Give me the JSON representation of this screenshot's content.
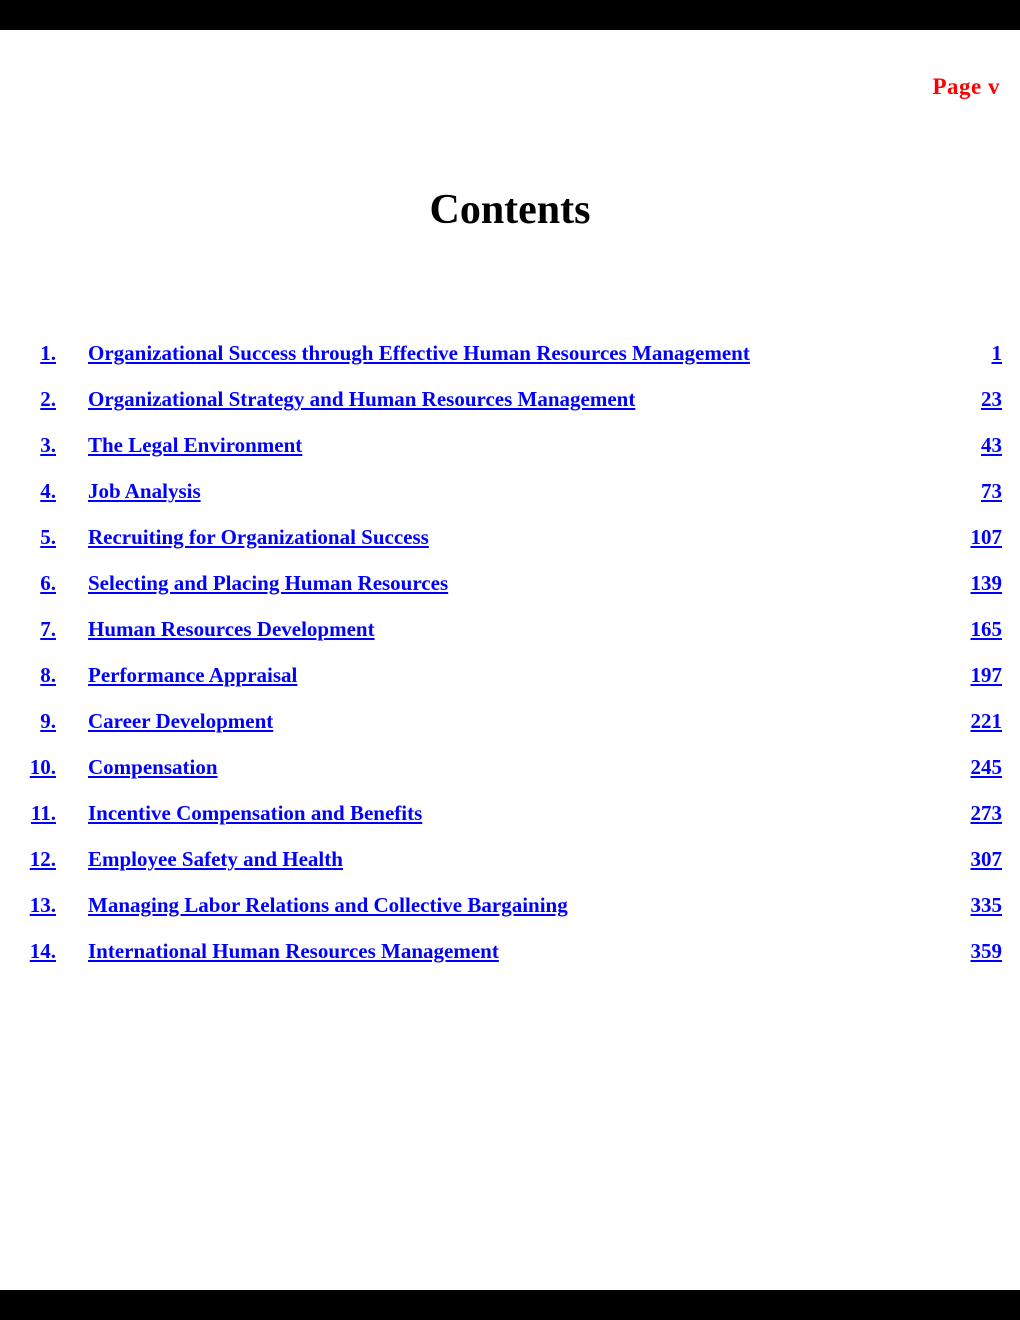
{
  "page": {
    "page_label": "Page v",
    "title": "Contents"
  },
  "colors": {
    "link": "#0000ff",
    "page_label": "#ff0000",
    "border_bar": "#000000",
    "background": "#ffffff"
  },
  "toc": {
    "items": [
      {
        "num": "1.",
        "title": "Organizational Success through Effective Human Resources Management",
        "page": "1"
      },
      {
        "num": "2.",
        "title": "Organizational Strategy and Human Resources Management",
        "page": "23"
      },
      {
        "num": "3.",
        "title": "The Legal Environment",
        "page": "43"
      },
      {
        "num": "4.",
        "title": "Job Analysis",
        "page": "73"
      },
      {
        "num": "5.",
        "title": "Recruiting for Organizational Success",
        "page": "107"
      },
      {
        "num": "6.",
        "title": "Selecting and Placing Human Resources",
        "page": "139"
      },
      {
        "num": "7.",
        "title": "Human Resources Development",
        "page": "165"
      },
      {
        "num": "8.",
        "title": "Performance Appraisal",
        "page": "197"
      },
      {
        "num": "9.",
        "title": "Career Development",
        "page": "221"
      },
      {
        "num": "10.",
        "title": "Compensation",
        "page": "245"
      },
      {
        "num": "11.",
        "title": "Incentive Compensation and Benefits",
        "page": "273"
      },
      {
        "num": "12.",
        "title": "Employee Safety and Health",
        "page": "307"
      },
      {
        "num": "13.",
        "title": "Managing Labor Relations and Collective Bargaining",
        "page": "335"
      },
      {
        "num": "14.",
        "title": "International Human Resources Management",
        "page": "359"
      }
    ]
  }
}
